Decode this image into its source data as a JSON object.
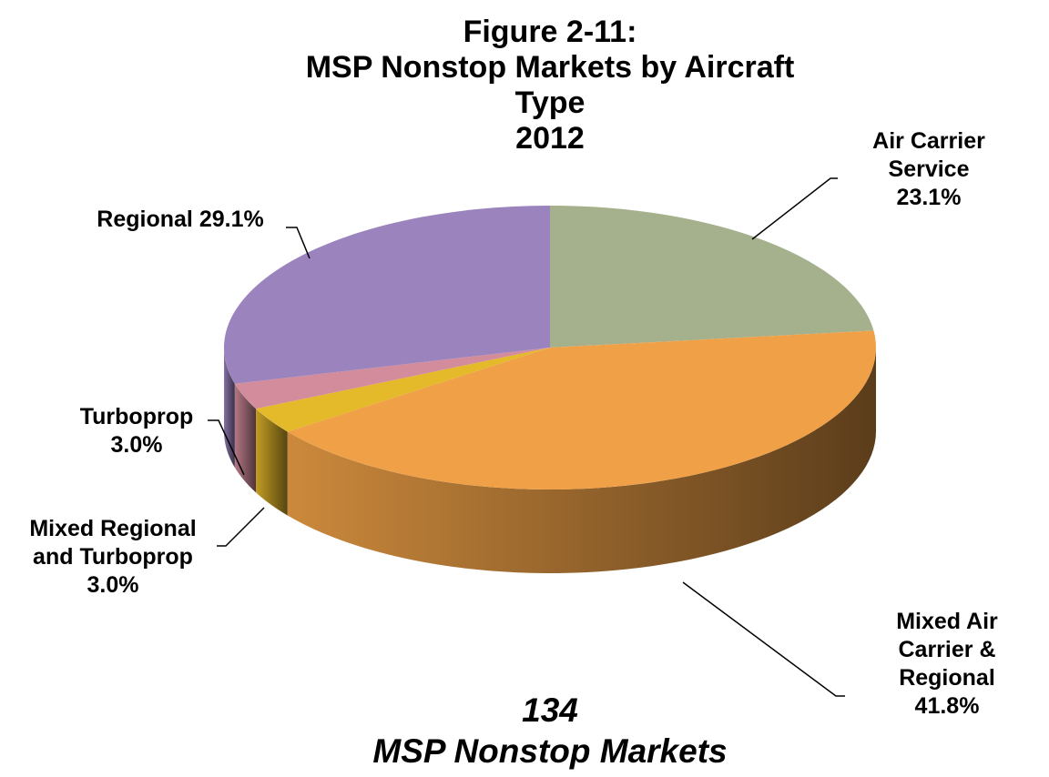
{
  "chart_data": {
    "type": "pie3d",
    "title": "Figure 2-11:\nMSP Nonstop Markets by Aircraft Type\n2012",
    "categories": [
      "Air Carrier\nService",
      "Mixed Air\nCarrier &\nRegional",
      "Mixed Regional\nand Turboprop",
      "Turboprop",
      "Regional"
    ],
    "values": [
      23.1,
      41.8,
      3.0,
      3.0,
      29.1
    ],
    "value_labels": [
      "23.1%",
      "41.8%",
      "3.0%",
      "3.0%",
      "29.1%"
    ],
    "colors": [
      "#a5b08d",
      "#f0a147",
      "#e4b92a",
      "#d28c9b",
      "#9b84be"
    ],
    "total": 134,
    "total_label": "MSP Nonstop Markets"
  }
}
